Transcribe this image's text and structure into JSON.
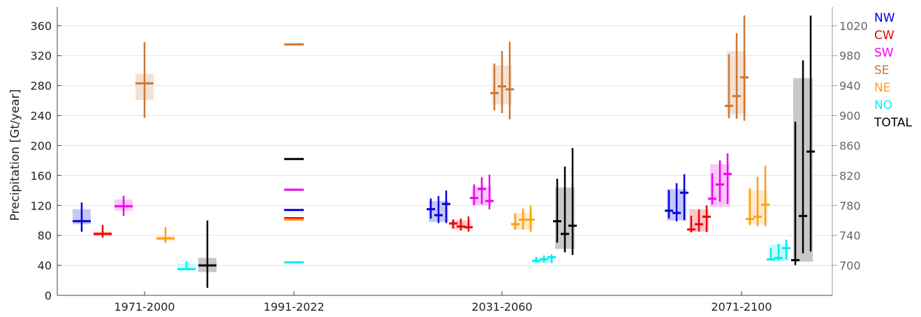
{
  "chart_data": {
    "type": "box",
    "ylabel": "Precipitation [Gt/year]",
    "ylim": [
      0,
      385
    ],
    "yticks": [
      0,
      40,
      80,
      120,
      160,
      200,
      240,
      280,
      320,
      360
    ],
    "right_axis": {
      "ticks": [
        700,
        740,
        780,
        820,
        860,
        900,
        940,
        980,
        1020
      ],
      "note": "applies to TOTAL series"
    },
    "categories": [
      "1971-2000",
      "1991-2022",
      "2031-2060",
      "2071-2100"
    ],
    "grid": "horizontal",
    "legend_position": "right",
    "series": [
      {
        "name": "NW",
        "color": "#0000dd"
      },
      {
        "name": "CW",
        "color": "#ee0000"
      },
      {
        "name": "SW",
        "color": "#ee00ee"
      },
      {
        "name": "SE",
        "color": "#cc7733"
      },
      {
        "name": "NE",
        "color": "#ffa010"
      },
      {
        "name": "NO",
        "color": "#00eeee"
      },
      {
        "name": "TOTAL",
        "color": "#000000"
      }
    ],
    "boxes": [
      {
        "series": "NW",
        "period": "1971-2000",
        "whisker": [
          85,
          124
        ],
        "box": [
          95,
          115
        ],
        "medians": [
          99
        ]
      },
      {
        "series": "CW",
        "period": "1971-2000",
        "whisker": [
          77,
          94
        ],
        "box": [
          79,
          85
        ],
        "medians": [
          82
        ]
      },
      {
        "series": "SW",
        "period": "1971-2000",
        "whisker": [
          106,
          133
        ],
        "box": [
          113,
          128
        ],
        "medians": [
          119
        ]
      },
      {
        "series": "SE",
        "period": "1971-2000",
        "whisker": [
          237,
          338
        ],
        "box": [
          261,
          296
        ],
        "medians": [
          283
        ]
      },
      {
        "series": "NE",
        "period": "1971-2000",
        "whisker": [
          70,
          91
        ],
        "box": [
          73,
          80
        ],
        "medians": [
          76
        ]
      },
      {
        "series": "NO",
        "period": "1971-2000",
        "whisker": [
          34,
          46
        ],
        "box": [
          34,
          42
        ],
        "medians": [
          35
        ]
      },
      {
        "series": "TOTAL",
        "period": "1971-2000",
        "whisker": [
          10,
          100
        ],
        "box": [
          31,
          50
        ],
        "medians": [
          40
        ]
      },
      {
        "series": "NW",
        "period": "1991-2022",
        "medians": [
          114
        ]
      },
      {
        "series": "CW",
        "period": "1991-2022",
        "medians": [
          103
        ]
      },
      {
        "series": "SW",
        "period": "1991-2022",
        "medians": [
          141
        ]
      },
      {
        "series": "SE",
        "period": "1991-2022",
        "medians": [
          335
        ]
      },
      {
        "series": "NE",
        "period": "1991-2022",
        "medians": [
          101
        ]
      },
      {
        "series": "NO",
        "period": "1991-2022",
        "medians": [
          44
        ]
      },
      {
        "series": "TOTAL",
        "period": "1991-2022",
        "medians": [
          182
        ]
      },
      {
        "series": "NW",
        "period": "2031-2060",
        "whisker": [
          92,
          141
        ],
        "box": [
          98,
          126
        ],
        "medians": [
          115,
          107,
          122
        ]
      },
      {
        "series": "CW",
        "period": "2031-2060",
        "whisker": [
          84,
          106
        ],
        "box": [
          88,
          100
        ],
        "medians": [
          96,
          92,
          91
        ]
      },
      {
        "series": "SW",
        "period": "2031-2060",
        "whisker": [
          113,
          163
        ],
        "box": [
          120,
          145
        ],
        "medians": [
          130,
          142,
          126
        ]
      },
      {
        "series": "SE",
        "period": "2031-2060",
        "whisker": [
          228,
          342
        ],
        "box": [
          255,
          307
        ],
        "medians": [
          270,
          279,
          275
        ]
      },
      {
        "series": "NE",
        "period": "2031-2060",
        "whisker": [
          82,
          121
        ],
        "box": [
          88,
          110
        ],
        "medians": [
          95,
          101,
          101
        ]
      },
      {
        "series": "NO",
        "period": "2031-2060",
        "whisker": [
          42,
          55
        ],
        "box": [
          43,
          51
        ],
        "medians": [
          46,
          48,
          51
        ]
      },
      {
        "series": "TOTAL",
        "period": "2031-2060",
        "whisker": [
          47,
          202
        ],
        "box": [
          62,
          144
        ],
        "medians": [
          99,
          82,
          93
        ]
      },
      {
        "series": "NW",
        "period": "2071-2100",
        "whisker": [
          94,
          163
        ],
        "box": [
          100,
          142
        ],
        "medians": [
          113,
          110,
          137
        ]
      },
      {
        "series": "CW",
        "period": "2071-2100",
        "whisker": [
          81,
          121
        ],
        "box": [
          85,
          115
        ],
        "medians": [
          88,
          95,
          105
        ]
      },
      {
        "series": "SW",
        "period": "2071-2100",
        "whisker": [
          115,
          191
        ],
        "box": [
          118,
          175
        ],
        "medians": [
          129,
          148,
          162
        ]
      },
      {
        "series": "SE",
        "period": "2071-2100",
        "whisker": [
          223,
          378
        ],
        "box": [
          242,
          326
        ],
        "medians": [
          253,
          266,
          291
        ]
      },
      {
        "series": "NE",
        "period": "2071-2100",
        "whisker": [
          87,
          176
        ],
        "box": [
          95,
          140
        ],
        "medians": [
          102,
          105,
          121
        ]
      },
      {
        "series": "NO",
        "period": "2071-2100",
        "whisker": [
          45,
          75
        ],
        "box": [
          46,
          68
        ],
        "medians": [
          48,
          50,
          63
        ]
      },
      {
        "series": "TOTAL",
        "period": "2071-2100",
        "whisker": [
          35,
          383
        ],
        "box": [
          45,
          290
        ],
        "medians": [
          47,
          106,
          192
        ]
      }
    ]
  }
}
